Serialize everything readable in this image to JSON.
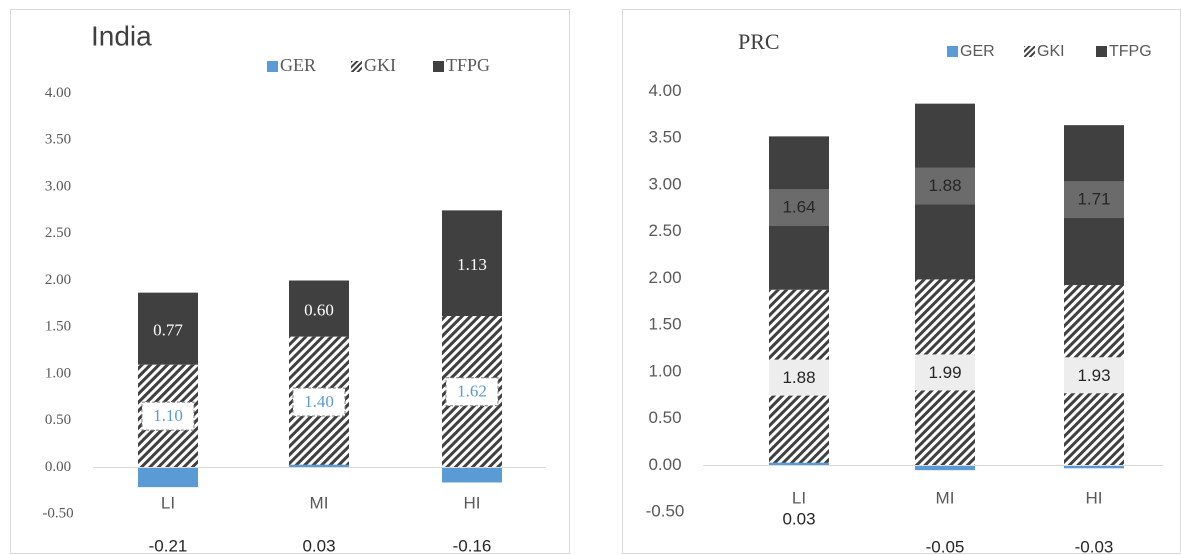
{
  "chart_data": [
    {
      "type": "bar",
      "stacked": true,
      "title": "India",
      "categories": [
        "LI",
        "MI",
        "HI"
      ],
      "series": [
        {
          "name": "GER",
          "values": [
            -0.21,
            0.03,
            -0.16
          ],
          "color": "#5b9bd5",
          "pattern": "solid"
        },
        {
          "name": "GKI",
          "values": [
            1.1,
            1.4,
            1.62
          ],
          "color": "#404040",
          "pattern": "diagonal-hatch"
        },
        {
          "name": "TFPG",
          "values": [
            0.77,
            0.6,
            1.13
          ],
          "color": "#404040",
          "pattern": "solid"
        }
      ],
      "ger_labels": [
        "-0.21",
        "0.03",
        "-0.16"
      ],
      "gki_labels": [
        "1.10",
        "1.40",
        "1.62"
      ],
      "tfpg_labels": [
        "0.77",
        "0.60",
        "1.13"
      ],
      "yticks": [
        "4.00",
        "3.50",
        "3.00",
        "2.50",
        "2.00",
        "1.50",
        "1.00",
        "0.50",
        "0.00",
        "-0.50"
      ],
      "ylim": [
        -0.5,
        4.0
      ],
      "legend_position": "top-right",
      "grid": false
    },
    {
      "type": "bar",
      "stacked": true,
      "title": "PRC",
      "categories": [
        "LI",
        "MI",
        "HI"
      ],
      "series": [
        {
          "name": "GER",
          "values": [
            0.03,
            -0.05,
            -0.03
          ],
          "color": "#5b9bd5",
          "pattern": "solid"
        },
        {
          "name": "GKI",
          "values": [
            1.88,
            1.99,
            1.93
          ],
          "color": "#404040",
          "pattern": "diagonal-hatch"
        },
        {
          "name": "TFPG",
          "values": [
            1.64,
            1.88,
            1.71
          ],
          "color": "#404040",
          "pattern": "solid"
        }
      ],
      "ger_labels": [
        "0.03",
        "-0.05",
        "-0.03"
      ],
      "gki_labels": [
        "1.88",
        "1.99",
        "1.93"
      ],
      "tfpg_labels": [
        "1.64",
        "1.88",
        "1.71"
      ],
      "yticks": [
        "4.00",
        "3.50",
        "3.00",
        "2.50",
        "2.00",
        "1.50",
        "1.00",
        "0.50",
        "0.00",
        "-0.50"
      ],
      "ylim": [
        -0.5,
        4.0
      ],
      "legend_position": "top-right",
      "grid": false
    }
  ]
}
